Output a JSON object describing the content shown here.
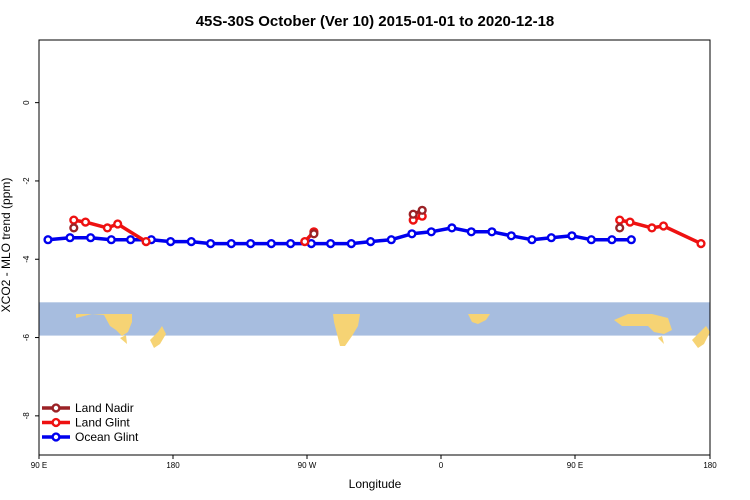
{
  "chart_data": {
    "type": "line",
    "title": "45S-30S October (Ver 10)   2015-01-01 to 2020-12-18",
    "xlabel": "Longitude",
    "ylabel": "XCO2 - MLO trend (ppm)",
    "xlim": [
      90,
      450
    ],
    "ylim": [
      -9,
      1.6
    ],
    "x_ticks": [
      {
        "value": 90,
        "label": "90 E"
      },
      {
        "value": 180,
        "label": "180"
      },
      {
        "value": 270,
        "label": "90 W"
      },
      {
        "value": 360,
        "label": "0"
      },
      {
        "value": 450,
        "label": "180"
      }
    ],
    "x_ticks_extra": [
      {
        "value": 450,
        "label": "90 E"
      }
    ],
    "y_ticks": [
      {
        "value": 0,
        "label": "0"
      },
      {
        "value": -2,
        "label": "-2"
      },
      {
        "value": -4,
        "label": "-4"
      },
      {
        "value": -6,
        "label": "-6"
      },
      {
        "value": -8,
        "label": "-8"
      }
    ],
    "map_band": {
      "y_top": -5.1,
      "y_bottom": -5.95,
      "ocean_color": "#a7bddf",
      "land_color": "#f6d374"
    },
    "legend_position": "bottom-left",
    "series": [
      {
        "name": "Land Nadir",
        "color": "#9b2226",
        "points": [
          {
            "x": 117,
            "y": -3.2
          },
          {
            "x": 303,
            "y": -3.35
          },
          {
            "x": 113,
            "y": -3.2
          },
          {
            "x": 113,
            "y": -3.2
          },
          {
            "x": 113,
            "y": -3.2
          }
        ],
        "segments": [
          [
            {
              "x": 117,
              "y": -3.2
            }
          ],
          [
            {
              "x": 303,
              "y": -3.35
            }
          ],
          [
            {
              "x": 380,
              "y": -2.85
            },
            {
              "x": 387,
              "y": -2.75
            }
          ],
          [
            {
              "x": 540,
              "y": -3.2
            }
          ]
        ]
      },
      {
        "name": "Land Glint",
        "color": "#ee1111",
        "segments": [
          [
            {
              "x": 117,
              "y": -3.0
            },
            {
              "x": 126,
              "y": -3.05
            },
            {
              "x": 143,
              "y": -3.2
            },
            {
              "x": 151,
              "y": -3.1
            },
            {
              "x": 173,
              "y": -3.55
            }
          ],
          [
            {
              "x": 296,
              "y": -3.55
            },
            {
              "x": 303,
              "y": -3.3
            }
          ],
          [
            {
              "x": 380,
              "y": -3.0
            },
            {
              "x": 387,
              "y": -2.9
            }
          ],
          [
            {
              "x": 540,
              "y": -3.0
            },
            {
              "x": 548,
              "y": -3.05
            },
            {
              "x": 565,
              "y": -3.2
            },
            {
              "x": 574,
              "y": -3.15
            },
            {
              "x": 603,
              "y": -3.6
            }
          ]
        ]
      },
      {
        "name": "Ocean Glint",
        "color": "#0000ee",
        "segments": [
          [
            {
              "x": 97,
              "y": -3.5
            },
            {
              "x": 114,
              "y": -3.45
            },
            {
              "x": 130,
              "y": -3.45
            },
            {
              "x": 146,
              "y": -3.5
            },
            {
              "x": 161,
              "y": -3.5
            },
            {
              "x": 177,
              "y": -3.5
            },
            {
              "x": 192,
              "y": -3.55
            },
            {
              "x": 208,
              "y": -3.55
            },
            {
              "x": 223,
              "y": -3.6
            },
            {
              "x": 239,
              "y": -3.6
            },
            {
              "x": 254,
              "y": -3.6
            },
            {
              "x": 270,
              "y": -3.6
            },
            {
              "x": 285,
              "y": -3.6
            },
            {
              "x": 301,
              "y": -3.6
            },
            {
              "x": 316,
              "y": -3.6
            },
            {
              "x": 332,
              "y": -3.6
            },
            {
              "x": 347,
              "y": -3.55
            },
            {
              "x": 363,
              "y": -3.5
            },
            {
              "x": 379,
              "y": -3.35
            },
            {
              "x": 394,
              "y": -3.3
            },
            {
              "x": 410,
              "y": -3.2
            },
            {
              "x": 425,
              "y": -3.3
            },
            {
              "x": 441,
              "y": -3.3
            },
            {
              "x": 456,
              "y": -3.4
            },
            {
              "x": 472,
              "y": -3.5
            },
            {
              "x": 487,
              "y": -3.45
            },
            {
              "x": 503,
              "y": -3.4
            },
            {
              "x": 518,
              "y": -3.5
            },
            {
              "x": 534,
              "y": -3.5
            },
            {
              "x": 549,
              "y": -3.5
            }
          ]
        ]
      }
    ]
  }
}
